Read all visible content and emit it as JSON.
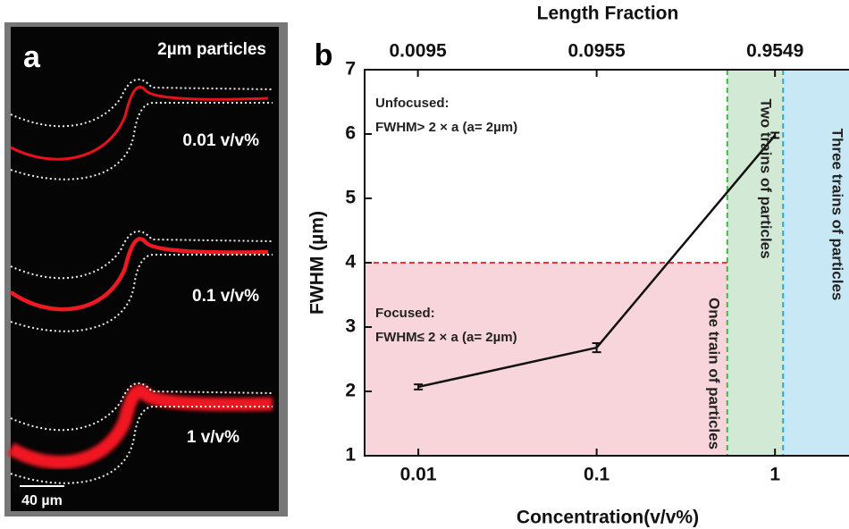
{
  "panel_a": {
    "label": "a",
    "title": "2µm particles",
    "images": [
      "0.01 v/v%",
      "0.1 v/v%",
      "1 v/v%"
    ],
    "scale_bar": "40 µm"
  },
  "chart_data": {
    "type": "line",
    "panel_label": "b",
    "xlabel": "Concentration(v/v%)",
    "ylabel": "FWHM (µm)",
    "x2label": "Length Fraction",
    "x": [
      0.01,
      0.1,
      1
    ],
    "values": [
      2.07,
      2.68,
      5.98
    ],
    "errors": [
      0.04,
      0.07,
      0.04
    ],
    "color": "#111111",
    "xscale": "log",
    "xlim": [
      0.005,
      2.6
    ],
    "xticks": [
      0.01,
      0.1,
      1
    ],
    "x2lim": [
      0.004775,
      2.483
    ],
    "x2ticks": [
      0.0095,
      0.0955,
      0.9549
    ],
    "ylim": [
      1,
      7
    ],
    "yticks": [
      1,
      2,
      3,
      4,
      5,
      6,
      7
    ],
    "regions": [
      {
        "name": "One train of particles",
        "xlim": [
          0.005,
          0.54
        ],
        "ylim": [
          1,
          4
        ],
        "color": "#f8d5da",
        "edge": "#e8343c",
        "dashed": "top"
      },
      {
        "name": "Two trains of particles",
        "xlim": [
          0.54,
          1.11
        ],
        "ylim": [
          1,
          7
        ],
        "color": "#d2e9d5",
        "edge": "#48b04f",
        "dashed": "left"
      },
      {
        "name": "Three trains of particles",
        "xlim": [
          1.11,
          2.6
        ],
        "ylim": [
          1,
          7
        ],
        "color": "#c8e8f6",
        "edge": "#2aa6df",
        "dashed": "left"
      }
    ],
    "annotations": [
      "Unfocused:",
      "FWHM> 2 × a (a= 2µm)",
      "Focused:",
      "FWHM≤ 2 × a (a= 2µm)"
    ]
  }
}
